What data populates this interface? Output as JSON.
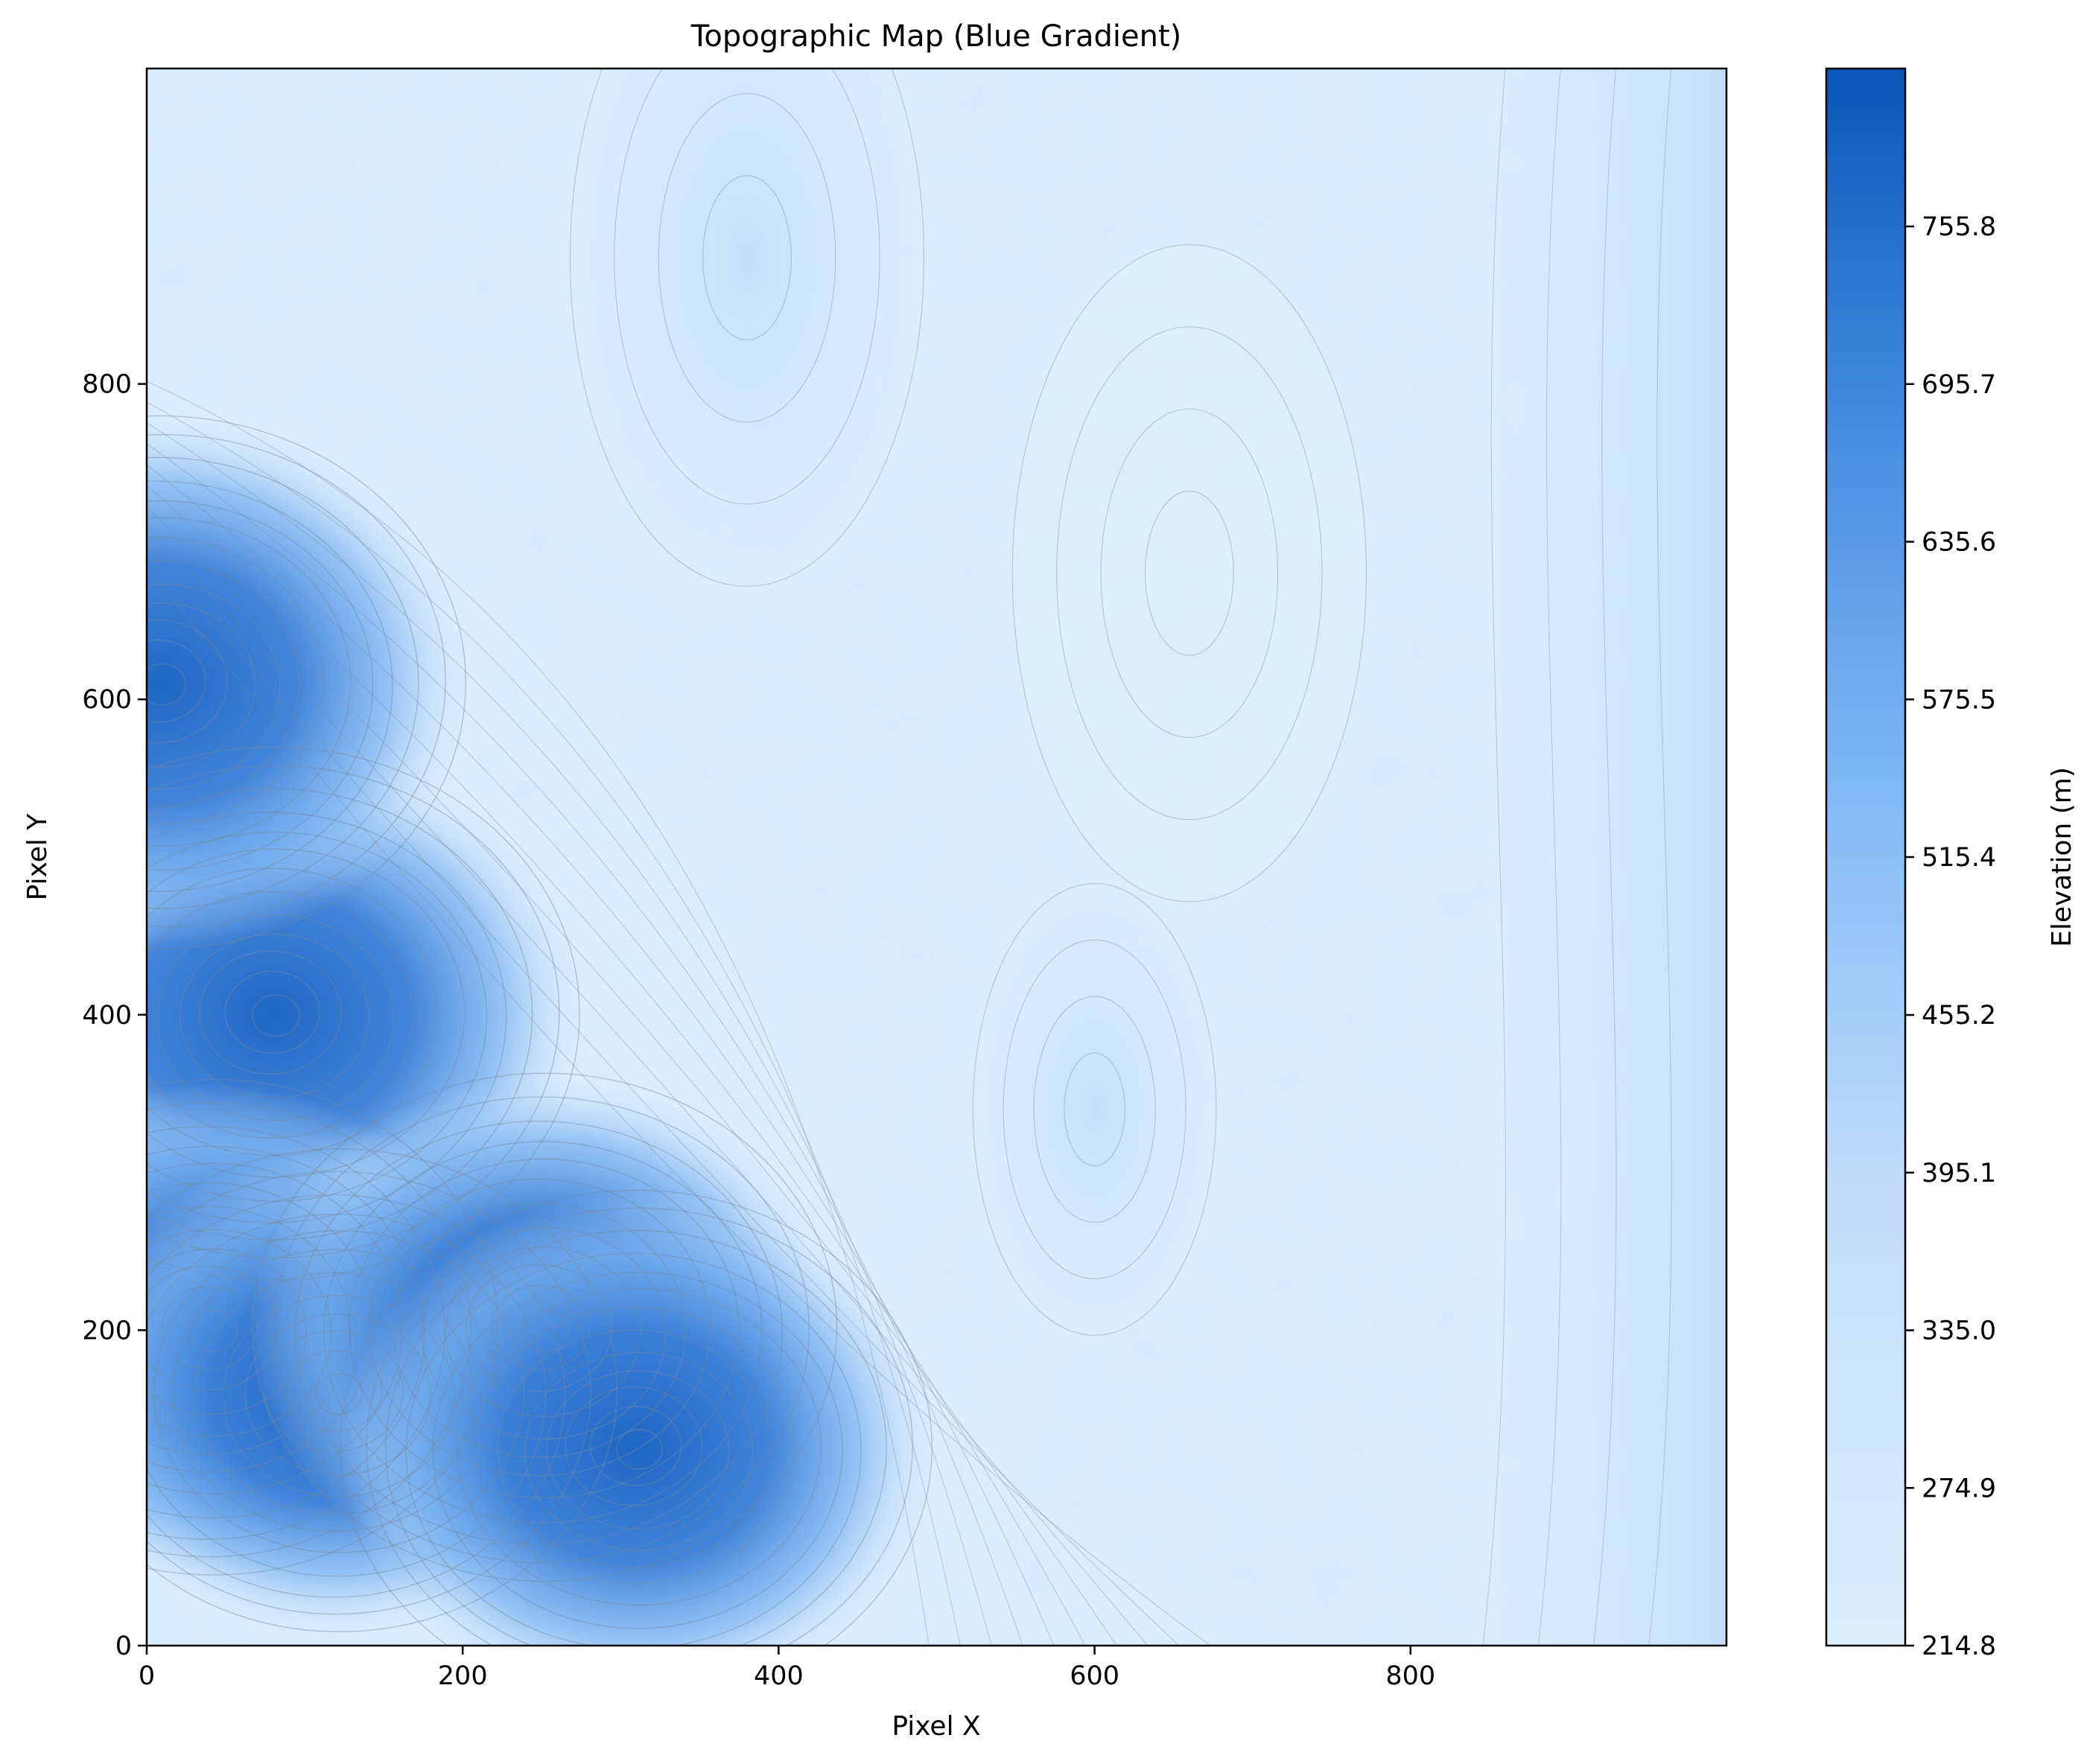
{
  "chart_data": {
    "type": "heatmap",
    "title": "Topographic Map (Blue Gradient)",
    "xlabel": "Pixel X",
    "ylabel": "Pixel Y",
    "xlim": [
      0,
      1000
    ],
    "ylim": [
      0,
      1000
    ],
    "x_ticks": [
      0,
      200,
      400,
      600,
      800
    ],
    "y_ticks": [
      0,
      200,
      400,
      600,
      800
    ],
    "colorbar": {
      "label": "Elevation (m)",
      "range": [
        214.8,
        816.0
      ],
      "ticks": [
        214.8,
        274.9,
        335.0,
        395.1,
        455.2,
        515.4,
        575.5,
        635.6,
        695.7,
        755.8
      ],
      "tick_labels": [
        "214.8",
        "274.9",
        "335.0",
        "395.1",
        "455.2",
        "515.4",
        "575.5",
        "635.6",
        "695.7",
        "755.8"
      ],
      "color_low": "#ddeefd",
      "color_high": "#0a56b7"
    },
    "contour_lines": true,
    "contour_color": "#7c8796",
    "features": [
      {
        "kind": "peak",
        "center": [
          80,
          400
        ],
        "elevation": 760
      },
      {
        "kind": "peak",
        "center": [
          40,
          200
        ],
        "elevation": 700
      },
      {
        "kind": "peak",
        "center": [
          120,
          160
        ],
        "elevation": 680
      },
      {
        "kind": "peak",
        "center": [
          250,
          200
        ],
        "elevation": 720
      },
      {
        "kind": "peak",
        "center": [
          310,
          125
        ],
        "elevation": 730
      },
      {
        "kind": "peak",
        "center": [
          8,
          610
        ],
        "elevation": 760
      },
      {
        "kind": "hill",
        "center": [
          600,
          340
        ],
        "elevation": 340
      },
      {
        "kind": "ridge",
        "x": 960,
        "elevation": 330
      },
      {
        "kind": "plateau",
        "center": [
          380,
          880
        ],
        "elevation": 300
      },
      {
        "kind": "lowland",
        "center": [
          660,
          680
        ],
        "elevation": 225
      }
    ]
  }
}
